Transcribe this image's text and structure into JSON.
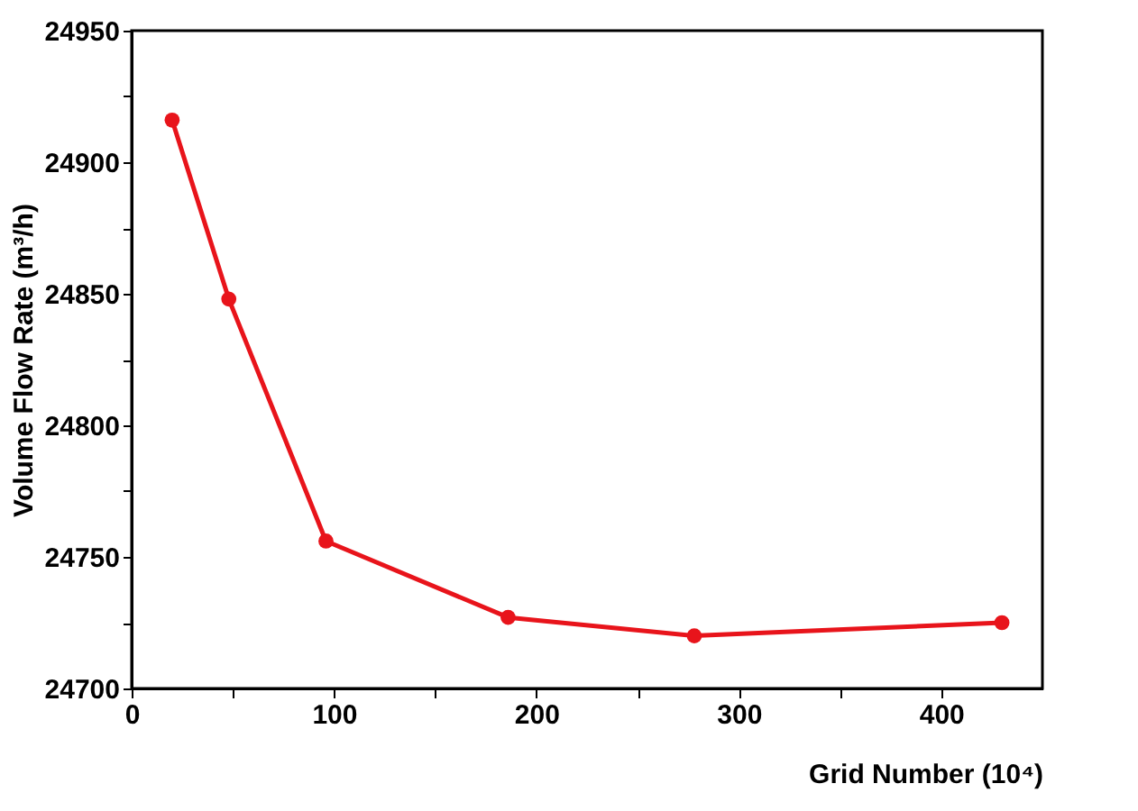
{
  "chart_data": {
    "type": "line",
    "xlabel": "Grid Number (10⁴)",
    "ylabel": "Volume Flow Rate (m³/h)",
    "x": [
      20,
      48,
      96,
      186,
      278,
      430
    ],
    "series": [
      {
        "color": "#e8141b",
        "values": [
          24916,
          24848,
          24756,
          24727,
          24720,
          24725
        ]
      }
    ],
    "xlim": [
      0,
      450
    ],
    "xticks": [
      0,
      {
        "value": 50,
        "label": null
      },
      100,
      {
        "value": 150,
        "label": null
      },
      200,
      {
        "value": 250,
        "label": null
      },
      300,
      {
        "value": 350,
        "label": null
      },
      400
    ],
    "ylim": [
      24700,
      24950
    ],
    "yticks": [
      24700,
      {
        "value": 24725,
        "label": null
      },
      24750,
      {
        "value": 24775,
        "label": null
      },
      24800,
      {
        "value": 24825,
        "label": null
      },
      24850,
      {
        "value": 24875,
        "label": null
      },
      24900,
      {
        "value": 24925,
        "label": null
      },
      24950
    ],
    "grid": false,
    "legend": false,
    "marker": "circle",
    "line_style": "solid"
  }
}
